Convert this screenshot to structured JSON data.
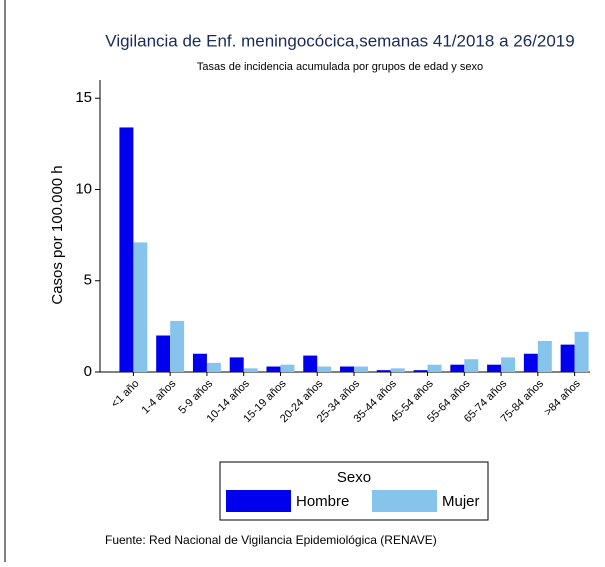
{
  "chart_data": {
    "type": "bar",
    "title": "Vigilancia de Enf. meningocócica,semanas 41/2018 a 26/2019",
    "subtitle": "Tasas de incidencia acumulada por grupos de edad y sexo",
    "y_label": "Casos por 100.000 h",
    "categories": [
      "<1 año",
      "1-4 años",
      "5-9 años",
      "10-14 años",
      "15-19 años",
      "20-24 años",
      "25-34 años",
      "35-44 años",
      "45-54 años",
      "55-64 años",
      "65-74 años",
      "75-84 años",
      ">84 años"
    ],
    "series": [
      {
        "name": "Hombre",
        "color": "#0000ee",
        "values": [
          13.4,
          2.0,
          1.0,
          0.8,
          0.3,
          0.9,
          0.3,
          0.1,
          0.1,
          0.4,
          0.4,
          1.0,
          1.5
        ]
      },
      {
        "name": "Mujer",
        "color": "#87c4ec",
        "values": [
          7.1,
          2.8,
          0.5,
          0.2,
          0.4,
          0.3,
          0.3,
          0.2,
          0.4,
          0.7,
          0.8,
          1.7,
          2.2
        ]
      }
    ],
    "ylim": [
      0,
      16
    ],
    "yticks": [
      0,
      5,
      10,
      15
    ],
    "legend_title": "Sexo",
    "source": "Fuente: Red Nacional de Vigilancia Epidemiológica (RENAVE)"
  }
}
